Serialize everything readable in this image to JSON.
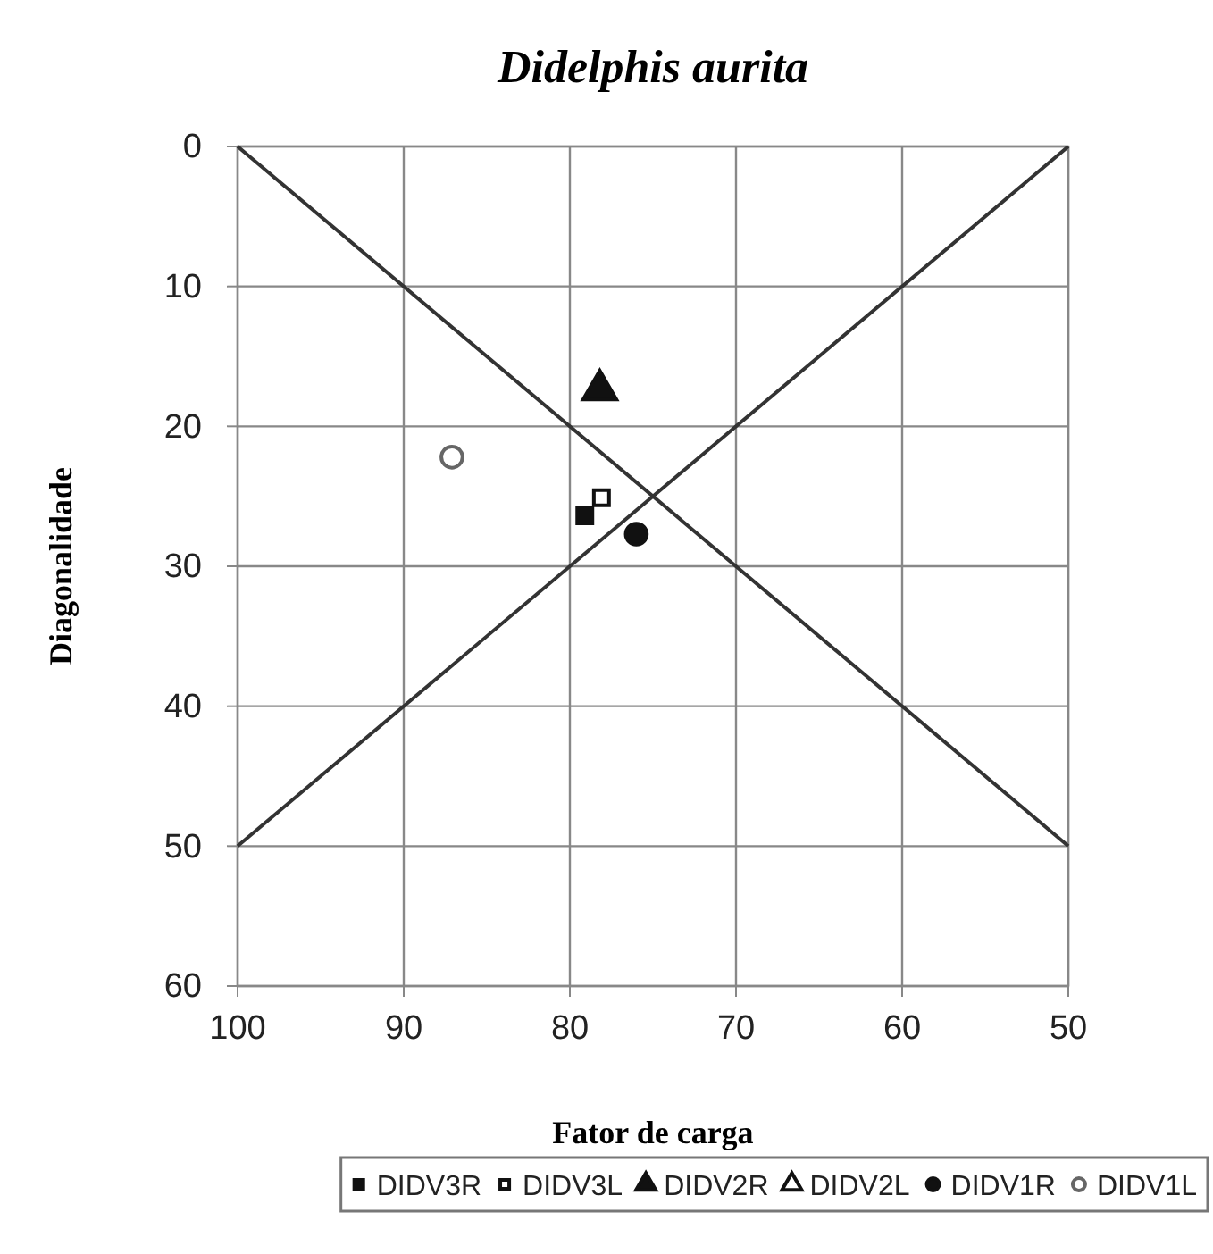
{
  "chart_data": {
    "type": "scatter",
    "title": "Didelphis aurita",
    "xlabel": "Fator de carga",
    "ylabel": "Diagonalidade",
    "xlim": [
      100,
      50
    ],
    "ylim": [
      60,
      0
    ],
    "xticks": [
      100,
      90,
      80,
      70,
      60,
      50
    ],
    "yticks": [
      0,
      10,
      20,
      30,
      40,
      50,
      60
    ],
    "grid": true,
    "legend": "bottom",
    "series": [
      {
        "type": "line",
        "color": "#333333",
        "x": [
          100,
          50
        ],
        "values": [
          0,
          50
        ],
        "marker": "none"
      },
      {
        "type": "line",
        "color": "#333333",
        "x": [
          100,
          50
        ],
        "values": [
          50,
          0
        ],
        "marker": "none"
      },
      {
        "name": "DIDV3R",
        "color": "#111111",
        "marker": "square",
        "x": [
          79.1
        ],
        "values": [
          26.4
        ]
      },
      {
        "name": "DIDV3L",
        "color": "#111111",
        "marker": "square",
        "x": [
          78.1
        ],
        "values": [
          25.1
        ]
      },
      {
        "name": "DIDV2R",
        "color": "#111111",
        "marker": "triangle",
        "x": [
          78.2
        ],
        "values": [
          17.4
        ]
      },
      {
        "name": "DIDV2L",
        "color": "#111111",
        "marker": "triangle"
      },
      {
        "name": "DIDV1R",
        "color": "#111111",
        "marker": "circle",
        "x": [
          76.0
        ],
        "values": [
          27.7
        ]
      },
      {
        "name": "DIDV1L",
        "color": "#666666",
        "marker": "circle",
        "x": [
          87.1
        ],
        "values": [
          22.2
        ]
      }
    ]
  }
}
